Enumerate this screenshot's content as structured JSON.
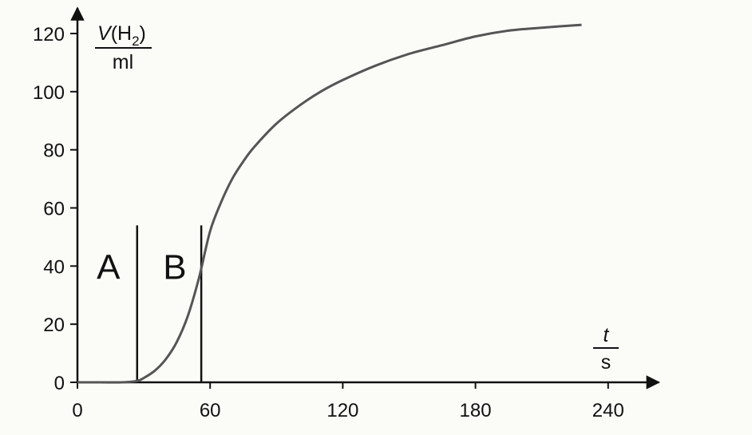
{
  "chart_data": {
    "type": "line",
    "title": "",
    "xlabel": {
      "var": "t",
      "unit": "s"
    },
    "ylabel": {
      "var": "V",
      "paren_open": "(H",
      "subscript": "2",
      "paren_close": ")",
      "unit": "ml"
    },
    "xlim": [
      0,
      255
    ],
    "ylim": [
      0,
      120
    ],
    "xticks": [
      0,
      60,
      120,
      180,
      240
    ],
    "yticks": [
      0,
      20,
      40,
      60,
      80,
      100,
      120
    ],
    "grid": false,
    "series": [
      {
        "color": "#555555",
        "points": [
          [
            0,
            0
          ],
          [
            10,
            0
          ],
          [
            20,
            0
          ],
          [
            27,
            0.5
          ],
          [
            30,
            1.5
          ],
          [
            35,
            4
          ],
          [
            40,
            8
          ],
          [
            45,
            14
          ],
          [
            50,
            23
          ],
          [
            55,
            36
          ],
          [
            60,
            52
          ],
          [
            65,
            62
          ],
          [
            70,
            70
          ],
          [
            75,
            76
          ],
          [
            80,
            81
          ],
          [
            90,
            89
          ],
          [
            100,
            95
          ],
          [
            110,
            100
          ],
          [
            120,
            104
          ],
          [
            135,
            109
          ],
          [
            150,
            113
          ],
          [
            165,
            116
          ],
          [
            180,
            119
          ],
          [
            195,
            121
          ],
          [
            210,
            122
          ],
          [
            228,
            123
          ]
        ]
      }
    ],
    "markers": [
      {
        "x": 27,
        "y_top": 54
      },
      {
        "x": 56,
        "y_top": 54
      }
    ],
    "regions": [
      {
        "label": "A",
        "x": 14,
        "y": 40
      },
      {
        "label": "B",
        "x": 44,
        "y": 40
      }
    ]
  }
}
